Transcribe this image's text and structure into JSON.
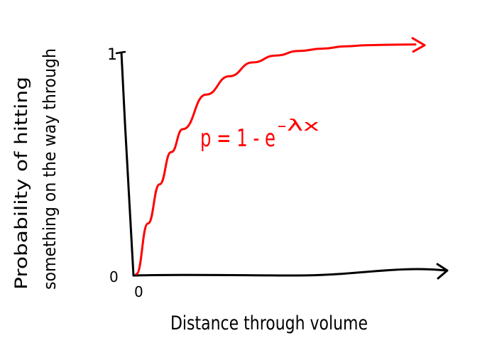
{
  "chart_data": {
    "type": "line",
    "title": "",
    "xlabel": "Distance through volume",
    "ylabel_line1": "Probability of hitting",
    "ylabel_line2": "something on the way through",
    "y_tick_labels": [
      "0",
      "1"
    ],
    "x_tick_labels": [
      "0"
    ],
    "annotation": "p = 1 - e",
    "annotation_exponent": "-λx",
    "ylim": [
      0,
      1
    ],
    "xlim": [
      0,
      6
    ],
    "series": [
      {
        "x": [
          0,
          0.25,
          0.5,
          0.75,
          1,
          1.5,
          2,
          2.5,
          3,
          3.5,
          4,
          4.5,
          5,
          5.5,
          6
        ],
        "values": [
          0,
          0.22,
          0.39,
          0.53,
          0.63,
          0.78,
          0.86,
          0.92,
          0.95,
          0.97,
          0.98,
          0.99,
          0.995,
          0.997,
          0.998
        ]
      }
    ],
    "colors": {
      "curve": "#ff0000",
      "axes": "#000000",
      "text": "#000000",
      "annotation": "#ff0000"
    },
    "grid": false
  }
}
